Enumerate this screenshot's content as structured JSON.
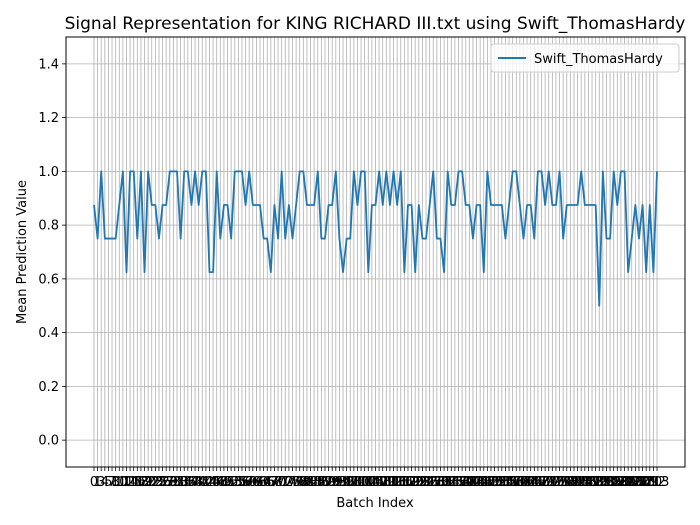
{
  "chart_data": {
    "type": "line",
    "title": "Signal Representation for KING RICHARD III.txt using Swift_ThomasHardy",
    "xlabel": "Batch Index",
    "ylabel": "Mean Prediction Value",
    "ylim": [
      -0.1,
      1.5
    ],
    "y_ticks": [
      0.0,
      0.2,
      0.4,
      0.6,
      0.8,
      1.0,
      1.2,
      1.4
    ],
    "y_tick_labels": [
      "0.0",
      "0.2",
      "0.4",
      "0.6",
      "0.8",
      "1.0",
      "1.2",
      "1.4"
    ],
    "x_tick_labels_start": 0,
    "x_tick_labels_end": 213,
    "grid": true,
    "legend_position": "top-right",
    "series": [
      {
        "name": "Swift_ThomasHardy",
        "color": "#1f77b4",
        "values": [
          0.875,
          0.75,
          1.0,
          0.75,
          0.75,
          0.75,
          0.75,
          0.875,
          1.0,
          0.625,
          1.0,
          1.0,
          0.75,
          1.0,
          0.625,
          1.0,
          0.875,
          0.875,
          0.75,
          0.875,
          0.875,
          1.0,
          1.0,
          1.0,
          0.75,
          1.0,
          1.0,
          0.875,
          1.0,
          0.875,
          1.0,
          1.0,
          0.625,
          0.625,
          1.0,
          0.75,
          0.875,
          0.875,
          0.75,
          1.0,
          1.0,
          1.0,
          0.875,
          1.0,
          0.875,
          0.875,
          0.875,
          0.75,
          0.75,
          0.625,
          0.875,
          0.75,
          1.0,
          0.75,
          0.875,
          0.75,
          0.875,
          1.0,
          1.0,
          0.875,
          0.875,
          0.875,
          1.0,
          0.75,
          0.75,
          0.875,
          0.875,
          1.0,
          0.75,
          0.625,
          0.75,
          0.75,
          1.0,
          0.875,
          1.0,
          1.0,
          0.625,
          0.875,
          0.875,
          1.0,
          0.875,
          1.0,
          0.875,
          1.0,
          0.875,
          1.0,
          0.625,
          0.875,
          0.875,
          0.625,
          0.875,
          0.75,
          0.75,
          0.875,
          1.0,
          0.75,
          0.75,
          0.625,
          1.0,
          0.875,
          0.875,
          1.0,
          1.0,
          0.875,
          0.875,
          0.75,
          0.875,
          0.875,
          0.625,
          1.0,
          0.875,
          0.875,
          0.875,
          0.875,
          0.75,
          0.875,
          1.0,
          1.0,
          0.875,
          0.75,
          0.875,
          0.875,
          0.75,
          1.0,
          1.0,
          0.875,
          1.0,
          0.875,
          0.875,
          1.0,
          0.75,
          0.875,
          0.875,
          0.875,
          0.875,
          1.0,
          0.875,
          0.875,
          0.875,
          0.875,
          0.5,
          1.0,
          0.75,
          0.75,
          1.0,
          0.875,
          1.0,
          1.0,
          0.625,
          0.75,
          0.875,
          0.75,
          0.875,
          0.625,
          0.875,
          0.625,
          1.0
        ]
      }
    ]
  }
}
